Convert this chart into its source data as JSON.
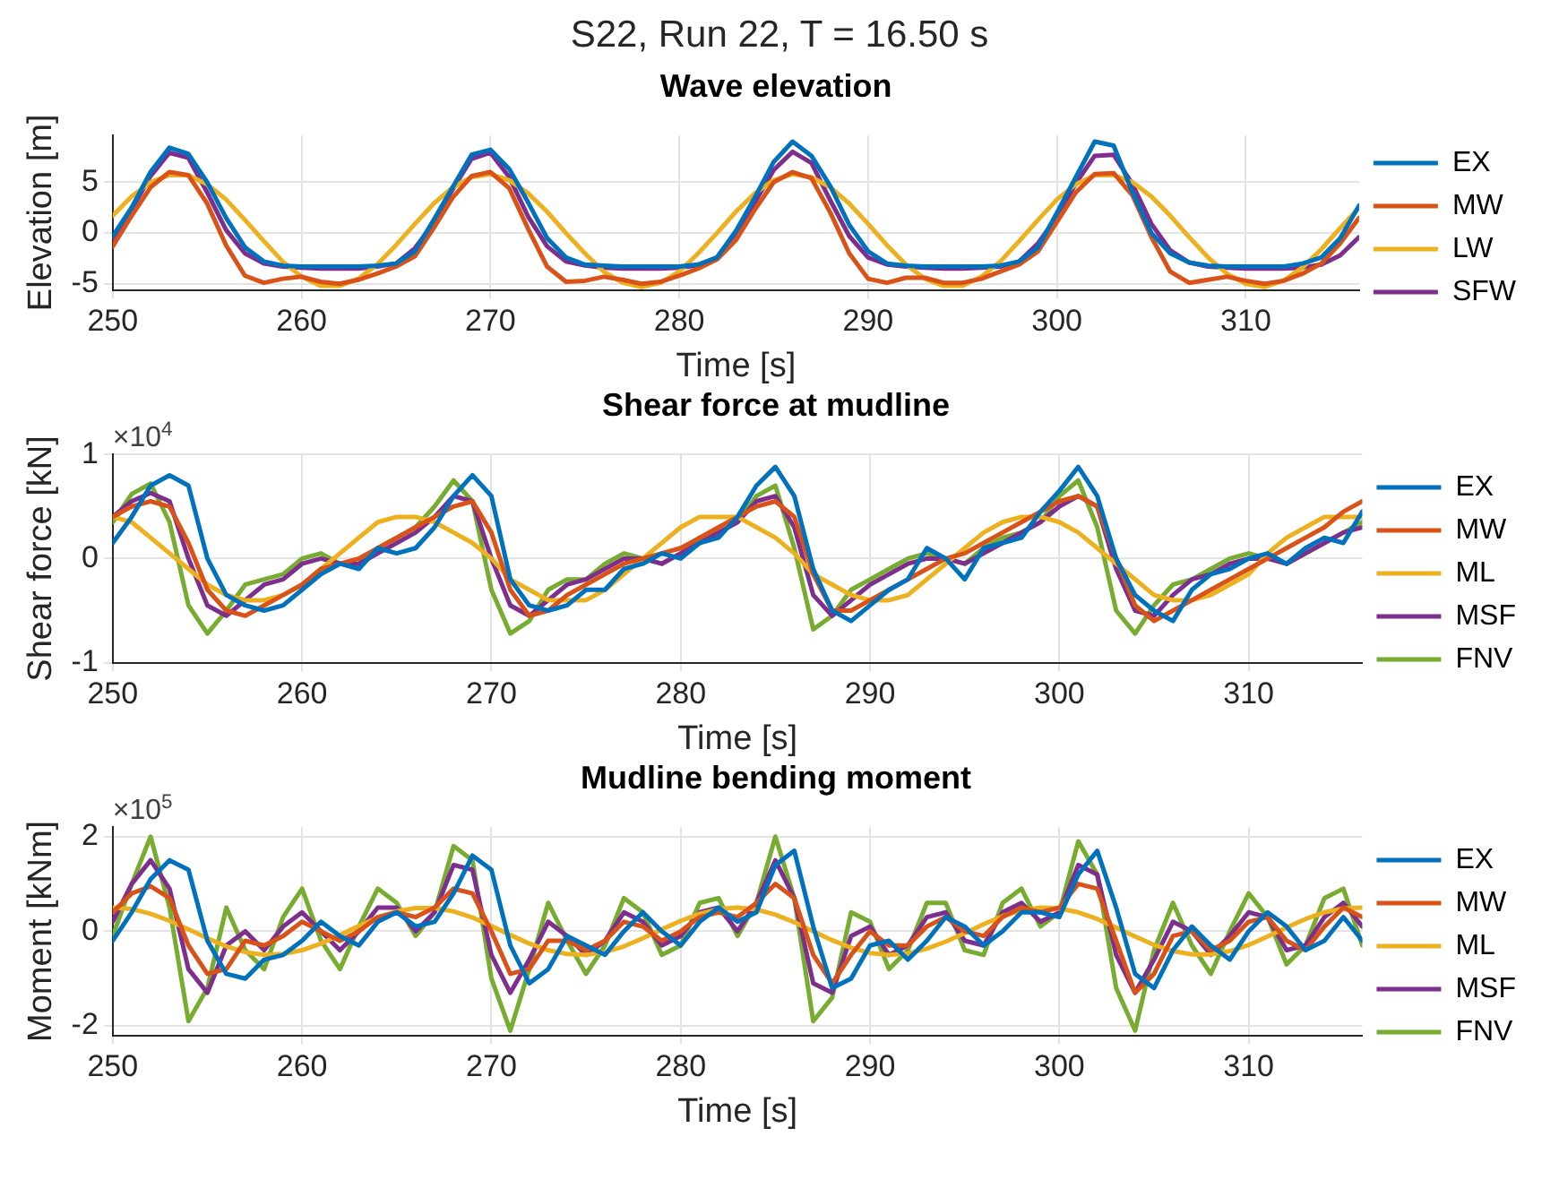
{
  "chart_data": [
    {
      "type": "line",
      "title": "S22, Run 22, T = 16.50 s",
      "subtitle": "Wave elevation",
      "xlabel": "Time [s]",
      "ylabel": "Elevation [m]",
      "xlim": [
        250,
        316
      ],
      "xticks": [
        250,
        260,
        270,
        280,
        290,
        300,
        310
      ],
      "ylim": [
        -5.6,
        9.6
      ],
      "yticks": [
        -5,
        0,
        5
      ],
      "grid": true,
      "legend": "right",
      "marker": "none",
      "line_style": "solid",
      "x": [
        250,
        251,
        252,
        253,
        254,
        255,
        256,
        257,
        258,
        259,
        260,
        261,
        262,
        263,
        264,
        265,
        266,
        267,
        268,
        269,
        270,
        271,
        272,
        273,
        274,
        275,
        276,
        277,
        278,
        279,
        280,
        281,
        282,
        283,
        284,
        285,
        286,
        287,
        288,
        289,
        290,
        291,
        292,
        293,
        294,
        295,
        296,
        297,
        298,
        299,
        300,
        301,
        302,
        303,
        304,
        305,
        306,
        307,
        308,
        309,
        310,
        311,
        312,
        313,
        314,
        315,
        316
      ],
      "series": [
        {
          "name": "EX",
          "color": "#0072bd",
          "values": [
            -0.3,
            2.5,
            6.0,
            8.4,
            7.8,
            5.0,
            1.5,
            -1.4,
            -2.8,
            -3.2,
            -3.3,
            -3.3,
            -3.3,
            -3.3,
            -3.2,
            -3.0,
            -1.8,
            1.3,
            4.5,
            7.7,
            8.2,
            6.3,
            3.0,
            -0.5,
            -2.4,
            -3.1,
            -3.2,
            -3.3,
            -3.3,
            -3.3,
            -3.3,
            -3.1,
            -2.4,
            0.2,
            3.5,
            7.0,
            9.0,
            7.6,
            4.6,
            0.8,
            -1.8,
            -3.0,
            -3.2,
            -3.3,
            -3.3,
            -3.3,
            -3.3,
            -3.2,
            -2.8,
            -1.4,
            2.0,
            5.5,
            9.0,
            8.6,
            4.0,
            0.0,
            -2.0,
            -2.9,
            -3.2,
            -3.3,
            -3.3,
            -3.3,
            -3.3,
            -3.0,
            -2.4,
            -0.5,
            2.7
          ]
        },
        {
          "name": "MW",
          "color": "#d95319",
          "values": [
            -1.3,
            1.7,
            4.5,
            6.0,
            5.7,
            2.9,
            -1.2,
            -4.2,
            -4.9,
            -4.5,
            -4.3,
            -4.8,
            -5.0,
            -4.6,
            -4.0,
            -3.3,
            -2.3,
            0.5,
            3.5,
            5.6,
            6.0,
            4.4,
            0.4,
            -3.3,
            -4.8,
            -4.7,
            -4.3,
            -4.6,
            -5.0,
            -4.8,
            -4.2,
            -3.5,
            -2.6,
            -0.7,
            2.3,
            5.0,
            6.0,
            5.4,
            2.0,
            -2.0,
            -4.5,
            -4.9,
            -4.4,
            -4.4,
            -4.9,
            -4.9,
            -4.5,
            -3.8,
            -3.1,
            -1.8,
            1.1,
            4.0,
            5.8,
            5.9,
            3.7,
            -0.4,
            -3.8,
            -4.9,
            -4.6,
            -4.3,
            -4.7,
            -5.0,
            -4.7,
            -4.0,
            -3.0,
            -1.0,
            1.5
          ]
        },
        {
          "name": "LW",
          "color": "#edb120",
          "values": [
            1.7,
            3.6,
            5.0,
            5.7,
            5.7,
            4.8,
            3.3,
            1.3,
            -0.8,
            -2.8,
            -4.3,
            -5.2,
            -5.2,
            -4.5,
            -3.1,
            -1.2,
            0.9,
            2.9,
            4.5,
            5.5,
            5.8,
            5.2,
            3.9,
            2.1,
            0.0,
            -2.0,
            -3.8,
            -4.9,
            -5.3,
            -4.9,
            -3.8,
            -2.0,
            0.0,
            2.1,
            3.9,
            5.2,
            5.8,
            5.5,
            4.5,
            2.9,
            0.9,
            -1.2,
            -3.1,
            -4.5,
            -5.2,
            -5.2,
            -4.3,
            -2.8,
            -0.8,
            1.3,
            3.3,
            4.8,
            5.7,
            5.7,
            5.0,
            3.6,
            1.7,
            -0.4,
            -2.4,
            -4.0,
            -5.0,
            -5.3,
            -4.7,
            -3.4,
            -1.6,
            0.5,
            2.5
          ]
        },
        {
          "name": "SFW",
          "color": "#7e2f8e",
          "values": [
            -0.5,
            2.3,
            5.6,
            7.9,
            7.4,
            4.0,
            0.3,
            -2.0,
            -3.0,
            -3.3,
            -3.4,
            -3.5,
            -3.5,
            -3.5,
            -3.3,
            -3.0,
            -1.5,
            1.0,
            4.3,
            7.3,
            7.9,
            5.5,
            1.6,
            -1.3,
            -2.8,
            -3.2,
            -3.4,
            -3.5,
            -3.5,
            -3.5,
            -3.4,
            -3.2,
            -2.4,
            0.0,
            3.0,
            6.2,
            8.0,
            6.9,
            3.2,
            -0.3,
            -2.4,
            -3.1,
            -3.3,
            -3.4,
            -3.5,
            -3.5,
            -3.4,
            -3.3,
            -2.8,
            -1.0,
            1.6,
            4.9,
            7.6,
            7.7,
            4.8,
            0.9,
            -1.7,
            -2.9,
            -3.3,
            -3.4,
            -3.5,
            -3.5,
            -3.5,
            -3.4,
            -3.1,
            -2.2,
            -0.4
          ]
        }
      ]
    },
    {
      "type": "line",
      "title": "Shear force at mudline",
      "xlabel": "Time [s]",
      "ylabel": "Shear force [kN]",
      "annotations": [
        "×10$^{4}$"
      ],
      "xlim": [
        250,
        316
      ],
      "xticks": [
        250,
        260,
        270,
        280,
        290,
        300,
        310
      ],
      "ylim": [
        -1,
        1
      ],
      "yticks": [
        -1,
        0,
        1
      ],
      "grid": true,
      "legend": "right",
      "marker": "none",
      "line_style": "solid",
      "x": [
        250,
        251,
        252,
        253,
        254,
        255,
        256,
        257,
        258,
        259,
        260,
        261,
        262,
        263,
        264,
        265,
        266,
        267,
        268,
        269,
        270,
        271,
        272,
        273,
        274,
        275,
        276,
        277,
        278,
        279,
        280,
        281,
        282,
        283,
        284,
        285,
        286,
        287,
        288,
        289,
        290,
        291,
        292,
        293,
        294,
        295,
        296,
        297,
        298,
        299,
        300,
        301,
        302,
        303,
        304,
        305,
        306,
        307,
        308,
        309,
        310,
        311,
        312,
        313,
        314,
        315,
        316
      ],
      "series": [
        {
          "name": "EX",
          "color": "#0072bd",
          "values": [
            0.15,
            0.4,
            0.7,
            0.8,
            0.7,
            0.0,
            -0.35,
            -0.45,
            -0.5,
            -0.45,
            -0.3,
            -0.15,
            -0.05,
            -0.1,
            0.1,
            0.05,
            0.1,
            0.3,
            0.6,
            0.8,
            0.6,
            -0.2,
            -0.45,
            -0.5,
            -0.45,
            -0.3,
            -0.3,
            -0.1,
            -0.05,
            0.05,
            0.0,
            0.15,
            0.2,
            0.4,
            0.7,
            0.88,
            0.6,
            -0.1,
            -0.5,
            -0.6,
            -0.45,
            -0.3,
            -0.2,
            0.1,
            0.0,
            -0.2,
            0.1,
            0.15,
            0.2,
            0.45,
            0.65,
            0.88,
            0.6,
            0.0,
            -0.35,
            -0.5,
            -0.6,
            -0.3,
            -0.15,
            -0.1,
            0.0,
            0.05,
            -0.05,
            0.1,
            0.2,
            0.15,
            0.45
          ]
        },
        {
          "name": "MW",
          "color": "#d95319",
          "values": [
            0.4,
            0.5,
            0.55,
            0.5,
            0.15,
            -0.3,
            -0.5,
            -0.55,
            -0.45,
            -0.35,
            -0.25,
            -0.1,
            -0.05,
            0.0,
            0.1,
            0.2,
            0.3,
            0.4,
            0.5,
            0.55,
            0.25,
            -0.3,
            -0.55,
            -0.5,
            -0.35,
            -0.25,
            -0.15,
            -0.05,
            0.0,
            0.05,
            0.1,
            0.2,
            0.3,
            0.4,
            0.5,
            0.55,
            0.4,
            -0.15,
            -0.5,
            -0.5,
            -0.4,
            -0.3,
            -0.2,
            -0.1,
            0.0,
            0.05,
            0.15,
            0.25,
            0.35,
            0.45,
            0.55,
            0.6,
            0.5,
            0.0,
            -0.45,
            -0.6,
            -0.5,
            -0.4,
            -0.3,
            -0.2,
            -0.1,
            0.0,
            0.1,
            0.2,
            0.3,
            0.45,
            0.55
          ]
        },
        {
          "name": "ML",
          "color": "#edb120",
          "values": [
            0.4,
            0.35,
            0.2,
            0.05,
            -0.1,
            -0.25,
            -0.35,
            -0.4,
            -0.4,
            -0.35,
            -0.25,
            -0.1,
            0.05,
            0.2,
            0.35,
            0.4,
            0.4,
            0.35,
            0.25,
            0.15,
            0.0,
            -0.2,
            -0.3,
            -0.4,
            -0.4,
            -0.4,
            -0.3,
            -0.15,
            0.0,
            0.15,
            0.3,
            0.4,
            0.4,
            0.4,
            0.3,
            0.2,
            0.05,
            -0.15,
            -0.25,
            -0.35,
            -0.4,
            -0.4,
            -0.35,
            -0.2,
            -0.05,
            0.1,
            0.25,
            0.35,
            0.4,
            0.4,
            0.35,
            0.25,
            0.1,
            -0.05,
            -0.2,
            -0.35,
            -0.4,
            -0.4,
            -0.35,
            -0.25,
            -0.15,
            0.05,
            0.2,
            0.3,
            0.4,
            0.4,
            0.4
          ]
        },
        {
          "name": "MSF",
          "color": "#7e2f8e",
          "values": [
            0.4,
            0.55,
            0.63,
            0.55,
            0.0,
            -0.45,
            -0.55,
            -0.4,
            -0.25,
            -0.2,
            -0.05,
            0.0,
            -0.05,
            -0.05,
            0.05,
            0.15,
            0.25,
            0.4,
            0.6,
            0.55,
            0.0,
            -0.45,
            -0.55,
            -0.4,
            -0.25,
            -0.2,
            -0.1,
            0.0,
            0.0,
            -0.05,
            0.05,
            0.15,
            0.25,
            0.35,
            0.55,
            0.6,
            0.3,
            -0.35,
            -0.55,
            -0.4,
            -0.25,
            -0.15,
            -0.05,
            0.0,
            0.0,
            -0.05,
            0.05,
            0.15,
            0.25,
            0.35,
            0.5,
            0.6,
            0.5,
            -0.1,
            -0.5,
            -0.55,
            -0.35,
            -0.2,
            -0.15,
            -0.05,
            0.0,
            0.0,
            -0.05,
            0.05,
            0.15,
            0.25,
            0.3
          ]
        },
        {
          "name": "FNV",
          "color": "#77ac30",
          "values": [
            0.35,
            0.62,
            0.72,
            0.35,
            -0.45,
            -0.72,
            -0.5,
            -0.25,
            -0.2,
            -0.15,
            0.0,
            0.05,
            -0.05,
            -0.05,
            0.1,
            0.2,
            0.3,
            0.5,
            0.75,
            0.55,
            -0.3,
            -0.72,
            -0.6,
            -0.3,
            -0.2,
            -0.2,
            -0.05,
            0.05,
            0.0,
            -0.05,
            0.05,
            0.2,
            0.25,
            0.35,
            0.6,
            0.7,
            0.1,
            -0.68,
            -0.55,
            -0.3,
            -0.2,
            -0.1,
            0.0,
            0.05,
            0.0,
            -0.05,
            0.1,
            0.2,
            0.25,
            0.35,
            0.6,
            0.75,
            0.3,
            -0.5,
            -0.72,
            -0.45,
            -0.25,
            -0.2,
            -0.1,
            0.0,
            0.05,
            0.0,
            -0.05,
            0.05,
            0.15,
            0.25,
            0.35
          ]
        }
      ]
    },
    {
      "type": "line",
      "title": "Mudline bending moment",
      "xlabel": "Time [s]",
      "ylabel": "Moment [kNm]",
      "annotations": [
        "×10$^{5}$"
      ],
      "xlim": [
        250,
        316
      ],
      "xticks": [
        250,
        260,
        270,
        280,
        290,
        300,
        310
      ],
      "ylim": [
        -2.2,
        2.2
      ],
      "yticks": [
        -2,
        0,
        2
      ],
      "grid": true,
      "legend": "right",
      "marker": "none",
      "line_style": "solid",
      "x": [
        250,
        251,
        252,
        253,
        254,
        255,
        256,
        257,
        258,
        259,
        260,
        261,
        262,
        263,
        264,
        265,
        266,
        267,
        268,
        269,
        270,
        271,
        272,
        273,
        274,
        275,
        276,
        277,
        278,
        279,
        280,
        281,
        282,
        283,
        284,
        285,
        286,
        287,
        288,
        289,
        290,
        291,
        292,
        293,
        294,
        295,
        296,
        297,
        298,
        299,
        300,
        301,
        302,
        303,
        304,
        305,
        306,
        307,
        308,
        309,
        310,
        311,
        312,
        313,
        314,
        315,
        316
      ],
      "series": [
        {
          "name": "EX",
          "color": "#0072bd",
          "values": [
            -0.2,
            0.4,
            1.1,
            1.5,
            1.3,
            -0.2,
            -0.9,
            -1.0,
            -0.6,
            -0.5,
            -0.2,
            0.2,
            -0.1,
            -0.3,
            0.2,
            0.4,
            0.1,
            0.2,
            0.8,
            1.6,
            1.3,
            -0.3,
            -1.1,
            -0.8,
            -0.1,
            -0.3,
            -0.5,
            0.0,
            0.4,
            0.0,
            -0.3,
            0.2,
            0.5,
            0.2,
            0.4,
            1.4,
            1.7,
            0.1,
            -1.2,
            -1.0,
            -0.3,
            -0.2,
            -0.6,
            -0.2,
            0.3,
            0.1,
            -0.3,
            0.0,
            0.4,
            0.4,
            0.3,
            1.2,
            1.7,
            0.5,
            -0.9,
            -1.2,
            -0.4,
            0.1,
            -0.3,
            -0.6,
            0.0,
            0.4,
            0.1,
            -0.4,
            -0.2,
            0.3,
            -0.2
          ]
        },
        {
          "name": "MW",
          "color": "#d95319",
          "values": [
            0.4,
            0.8,
            0.95,
            0.7,
            -0.3,
            -0.9,
            -0.8,
            -0.2,
            -0.3,
            -0.1,
            0.2,
            0.0,
            -0.2,
            0.0,
            0.3,
            0.4,
            0.3,
            0.5,
            0.9,
            0.8,
            0.0,
            -0.9,
            -0.8,
            -0.2,
            -0.2,
            -0.4,
            -0.2,
            0.2,
            0.1,
            -0.2,
            0.0,
            0.3,
            0.4,
            0.3,
            0.6,
            1.0,
            0.7,
            -0.5,
            -1.1,
            -0.5,
            0.0,
            -0.3,
            -0.3,
            0.1,
            0.3,
            0.0,
            -0.1,
            0.3,
            0.5,
            0.4,
            0.5,
            1.0,
            0.9,
            -0.2,
            -1.3,
            -0.9,
            -0.1,
            0.0,
            -0.4,
            -0.2,
            0.2,
            0.3,
            -0.2,
            -0.4,
            0.1,
            0.5,
            0.3
          ]
        },
        {
          "name": "ML",
          "color": "#edb120",
          "values": [
            0.5,
            0.47,
            0.37,
            0.22,
            0.04,
            -0.15,
            -0.32,
            -0.44,
            -0.5,
            -0.48,
            -0.4,
            -0.26,
            -0.08,
            0.11,
            0.29,
            0.42,
            0.49,
            0.49,
            0.42,
            0.29,
            0.11,
            -0.08,
            -0.26,
            -0.4,
            -0.48,
            -0.5,
            -0.44,
            -0.32,
            -0.15,
            0.04,
            0.22,
            0.37,
            0.47,
            0.5,
            0.46,
            0.35,
            0.19,
            0.0,
            -0.19,
            -0.35,
            -0.46,
            -0.5,
            -0.47,
            -0.37,
            -0.22,
            -0.04,
            0.15,
            0.32,
            0.44,
            0.5,
            0.48,
            0.4,
            0.26,
            0.08,
            -0.11,
            -0.29,
            -0.42,
            -0.49,
            -0.49,
            -0.42,
            -0.29,
            -0.11,
            0.08,
            0.26,
            0.4,
            0.48,
            0.5
          ]
        },
        {
          "name": "MSF",
          "color": "#7e2f8e",
          "values": [
            0.2,
            1.0,
            1.5,
            0.9,
            -0.8,
            -1.3,
            -0.3,
            0.0,
            -0.4,
            0.1,
            0.4,
            0.0,
            -0.4,
            0.0,
            0.5,
            0.5,
            0.0,
            0.4,
            1.4,
            1.3,
            -0.5,
            -1.3,
            -0.6,
            0.2,
            -0.1,
            -0.5,
            -0.2,
            0.4,
            0.2,
            -0.3,
            -0.1,
            0.4,
            0.5,
            0.0,
            0.6,
            1.5,
            0.7,
            -1.1,
            -1.3,
            -0.1,
            0.1,
            -0.5,
            -0.3,
            0.3,
            0.4,
            -0.2,
            -0.3,
            0.4,
            0.6,
            0.2,
            0.4,
            1.4,
            1.2,
            -0.5,
            -1.3,
            -0.6,
            0.2,
            0.0,
            -0.5,
            -0.1,
            0.4,
            0.3,
            -0.4,
            -0.3,
            0.3,
            0.6,
            0.1
          ]
        },
        {
          "name": "FNV",
          "color": "#77ac30",
          "values": [
            -0.1,
            1.0,
            2.0,
            0.5,
            -1.9,
            -1.2,
            0.5,
            -0.4,
            -0.8,
            0.3,
            0.9,
            -0.2,
            -0.8,
            0.1,
            0.9,
            0.6,
            -0.1,
            0.4,
            1.8,
            1.5,
            -1.0,
            -2.1,
            -0.8,
            0.6,
            -0.2,
            -0.9,
            -0.3,
            0.7,
            0.4,
            -0.5,
            -0.3,
            0.6,
            0.7,
            -0.1,
            0.6,
            2.0,
            0.7,
            -1.9,
            -1.4,
            0.4,
            0.2,
            -0.8,
            -0.4,
            0.6,
            0.6,
            -0.4,
            -0.5,
            0.6,
            0.9,
            0.1,
            0.4,
            1.9,
            1.2,
            -1.2,
            -2.1,
            -0.4,
            0.6,
            -0.3,
            -0.9,
            0.0,
            0.8,
            0.3,
            -0.7,
            -0.3,
            0.7,
            0.9,
            -0.3
          ]
        }
      ]
    }
  ]
}
